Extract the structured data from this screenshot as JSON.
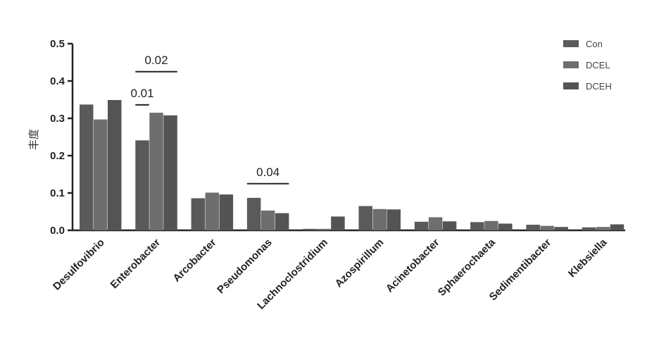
{
  "chart_data": {
    "type": "bar",
    "title": "",
    "xlabel": "",
    "ylabel": "丰度",
    "ylim": [
      0,
      0.5
    ],
    "yticks": [
      "0.0",
      "0.1",
      "0.2",
      "0.3",
      "0.4",
      "0.5"
    ],
    "grid": false,
    "legend_position": "top-right",
    "categories": [
      "Desulfovibrio",
      "Enterobacter",
      "Arcobacter",
      "Pseudomonas",
      "Lachnoclostridium",
      "Azospirillum",
      "Acinetobacter",
      "Sphaerochaeta",
      "Sedimentibacter",
      "Klebsiella"
    ],
    "series": [
      {
        "name": "Con",
        "color": "#5a5a5a",
        "values": [
          0.337,
          0.241,
          0.086,
          0.087,
          0.004,
          0.065,
          0.023,
          0.022,
          0.015,
          0.008
        ]
      },
      {
        "name": "DCEL",
        "color": "#6e6e6e",
        "values": [
          0.297,
          0.315,
          0.101,
          0.053,
          0.004,
          0.057,
          0.035,
          0.025,
          0.012,
          0.009
        ]
      },
      {
        "name": "DCEH",
        "color": "#545454",
        "values": [
          0.349,
          0.308,
          0.096,
          0.046,
          0.037,
          0.056,
          0.024,
          0.018,
          0.009,
          0.016
        ]
      }
    ],
    "annotations": [
      {
        "text": "0.02",
        "category": "Enterobacter",
        "y": 0.425,
        "from_series": "Con",
        "to_series": "DCEH"
      },
      {
        "text": "0.01",
        "category": "Enterobacter",
        "y": 0.336,
        "from_series": "Con",
        "to_series": "Con"
      },
      {
        "text": "0.04",
        "category": "Pseudomonas",
        "y": 0.125,
        "from_series": "Con",
        "to_series": "DCEH"
      }
    ]
  }
}
